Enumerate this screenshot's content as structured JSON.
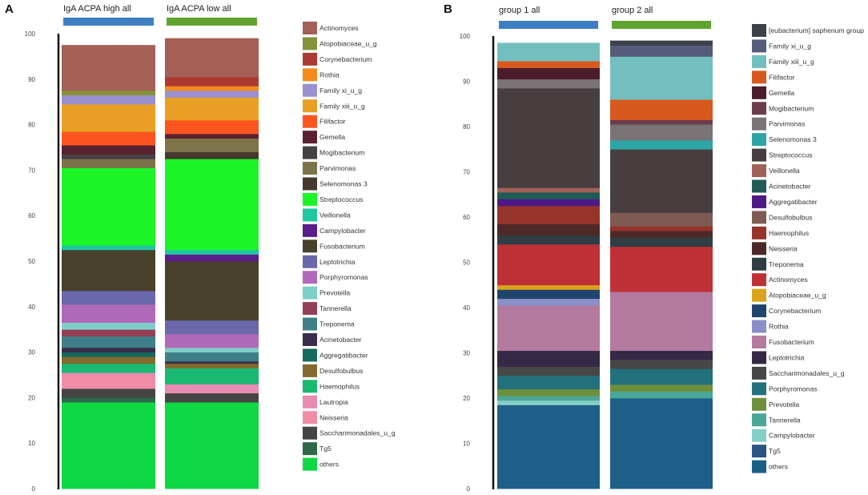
{
  "panels": [
    {
      "label": "A",
      "headers": [
        "IgA ACPA high all",
        "IgA ACPA low all"
      ],
      "header_bar_colors": [
        "#3d7fc2",
        "#61a330"
      ],
      "y_ticks": [
        "0",
        "10",
        "20",
        "30",
        "40",
        "50",
        "60",
        "70",
        "80",
        "90",
        "100"
      ]
    },
    {
      "label": "B",
      "headers": [
        "group 1 all",
        "group 2 all"
      ],
      "header_bar_colors": [
        "#3d7fc2",
        "#61a330"
      ],
      "y_ticks": [
        "0",
        "10",
        "20",
        "30",
        "40",
        "50",
        "60",
        "70",
        "80",
        "90",
        "100"
      ]
    }
  ],
  "chart_data": [
    {
      "type": "bar",
      "stacked": true,
      "title": "A",
      "categories": [
        "IgA ACPA high all",
        "IgA ACPA low all"
      ],
      "ylim": [
        0,
        100
      ],
      "legend_position": "right",
      "series": [
        {
          "name": "others",
          "color": "#0ed843",
          "values": [
            19,
            19
          ]
        },
        {
          "name": "Tg5",
          "color": "#2e6a4a",
          "values": [
            1,
            0
          ]
        },
        {
          "name": "Saccharimonadales_u_g",
          "color": "#444444",
          "values": [
            2,
            2
          ]
        },
        {
          "name": "Neisseria",
          "color": "#f08ca6",
          "values": [
            3,
            0
          ]
        },
        {
          "name": "Lautropia",
          "color": "#e98bb3",
          "values": [
            0.5,
            2
          ]
        },
        {
          "name": "Haemophilus",
          "color": "#1ab870",
          "values": [
            2,
            3.5
          ]
        },
        {
          "name": "Desulfobulbus",
          "color": "#846a2e",
          "values": [
            1.5,
            1
          ]
        },
        {
          "name": "Aggregatibacter",
          "color": "#17695d",
          "values": [
            1,
            0
          ]
        },
        {
          "name": "Acinetobacter",
          "color": "#392d49",
          "values": [
            1,
            0.5
          ]
        },
        {
          "name": "Treponema",
          "color": "#3f7f8a",
          "values": [
            2.5,
            2
          ]
        },
        {
          "name": "Tannerella",
          "color": "#933f55",
          "values": [
            1.5,
            0
          ]
        },
        {
          "name": "Prevotella",
          "color": "#7ecfc9",
          "values": [
            1.5,
            1
          ]
        },
        {
          "name": "Porphyromonas",
          "color": "#b069b8",
          "values": [
            4,
            3
          ]
        },
        {
          "name": "Leptotrichia",
          "color": "#6a68ab",
          "values": [
            3,
            3
          ]
        },
        {
          "name": "Fusobacterium",
          "color": "#4a412d",
          "values": [
            9,
            13
          ]
        },
        {
          "name": "Campylobacter",
          "color": "#5a1d8a",
          "values": [
            0,
            1.5
          ]
        },
        {
          "name": "Veillonella",
          "color": "#1fc7a0",
          "values": [
            1,
            1
          ]
        },
        {
          "name": "Streptococcus",
          "color": "#1bf527",
          "values": [
            17,
            20
          ]
        },
        {
          "name": "Selenomonas 3",
          "color": "#45382c",
          "values": [
            0,
            1.5
          ]
        },
        {
          "name": "Parvimonas",
          "color": "#7c7349",
          "values": [
            2,
            3
          ]
        },
        {
          "name": "Mogibacterium",
          "color": "#474145",
          "values": [
            1,
            0
          ]
        },
        {
          "name": "Gemella",
          "color": "#5a2230",
          "values": [
            2,
            1
          ]
        },
        {
          "name": "Filifactor",
          "color": "#fc541f",
          "values": [
            3,
            3
          ]
        },
        {
          "name": "Family xiii_u_g",
          "color": "#e8a024",
          "values": [
            6,
            5
          ]
        },
        {
          "name": "Family xi_u_g",
          "color": "#9a8fcf",
          "values": [
            2,
            1.5
          ]
        },
        {
          "name": "Rothia",
          "color": "#f58a1f",
          "values": [
            0,
            1
          ]
        },
        {
          "name": "Corynebacterium",
          "color": "#ab3b30",
          "values": [
            0,
            2
          ]
        },
        {
          "name": "Atopobiaceae_u_g",
          "color": "#849238",
          "values": [
            1,
            0
          ]
        },
        {
          "name": "Actinomyces",
          "color": "#a45f56",
          "values": [
            10,
            8.5
          ]
        }
      ]
    },
    {
      "type": "bar",
      "stacked": true,
      "title": "B",
      "categories": [
        "group 1 all",
        "group 2 all"
      ],
      "ylim": [
        0,
        100
      ],
      "legend_position": "right",
      "series": [
        {
          "name": "others",
          "color": "#1d5f87",
          "values": [
            18.5,
            20
          ]
        },
        {
          "name": "Tg5",
          "color": "#2a5584",
          "values": [
            0,
            0
          ]
        },
        {
          "name": "Campylobacter",
          "color": "#84cfc8",
          "values": [
            1,
            0
          ]
        },
        {
          "name": "Tannerella",
          "color": "#4aa696",
          "values": [
            1,
            1.5
          ]
        },
        {
          "name": "Prevotella",
          "color": "#6e8f3c",
          "values": [
            1.5,
            1.5
          ]
        },
        {
          "name": "Porphyromonas",
          "color": "#23717c",
          "values": [
            3,
            3.5
          ]
        },
        {
          "name": "Saccharimonadales_u_g",
          "color": "#474747",
          "values": [
            2,
            2
          ]
        },
        {
          "name": "Leptotrichia",
          "color": "#362847",
          "values": [
            3.5,
            2
          ]
        },
        {
          "name": "Fusobacterium",
          "color": "#b37a9e",
          "values": [
            10,
            13
          ]
        },
        {
          "name": "Rothia",
          "color": "#8a8fc7",
          "values": [
            1.5,
            0
          ]
        },
        {
          "name": "Corynebacterium",
          "color": "#1f456c",
          "values": [
            2,
            0
          ]
        },
        {
          "name": "Atopobiaceae_u_g",
          "color": "#dba21c",
          "values": [
            1,
            0
          ]
        },
        {
          "name": "Actinomyces",
          "color": "#c03037",
          "values": [
            9,
            10
          ]
        },
        {
          "name": "Treponema",
          "color": "#2f3d45",
          "values": [
            2,
            2
          ]
        },
        {
          "name": "Neisseria",
          "color": "#4d2a28",
          "values": [
            2.5,
            1.5
          ]
        },
        {
          "name": "Haemophilus",
          "color": "#96342c",
          "values": [
            4,
            1
          ]
        },
        {
          "name": "Desulfobulbus",
          "color": "#7e5a53",
          "values": [
            0,
            3
          ]
        },
        {
          "name": "Aggregatibacter",
          "color": "#4e1a87",
          "values": [
            1.5,
            0
          ]
        },
        {
          "name": "Acinetobacter",
          "color": "#215a56",
          "values": [
            1.5,
            0
          ]
        },
        {
          "name": "Veillonella",
          "color": "#a06258",
          "values": [
            1,
            0
          ]
        },
        {
          "name": "Streptococcus",
          "color": "#483d3f",
          "values": [
            22,
            14
          ]
        },
        {
          "name": "Selenomonas 3",
          "color": "#2fa4a4",
          "values": [
            0,
            2
          ]
        },
        {
          "name": "Parvimonas",
          "color": "#7a7477",
          "values": [
            2,
            3.5
          ]
        },
        {
          "name": "Mogibacterium",
          "color": "#6a3d4e",
          "values": [
            0,
            1
          ]
        },
        {
          "name": "Gemella",
          "color": "#4d1c2c",
          "values": [
            2.5,
            0
          ]
        },
        {
          "name": "Filifactor",
          "color": "#d8591d",
          "values": [
            1.5,
            4.5
          ]
        },
        {
          "name": "Family xiii_u_g",
          "color": "#73bebe",
          "values": [
            4,
            9.5
          ]
        },
        {
          "name": "Family xi_u_g",
          "color": "#555b79",
          "values": [
            0,
            2.5
          ]
        },
        {
          "name": "[eubacterium] saphenum group",
          "color": "#3d4149",
          "values": [
            0,
            1
          ]
        }
      ]
    }
  ]
}
